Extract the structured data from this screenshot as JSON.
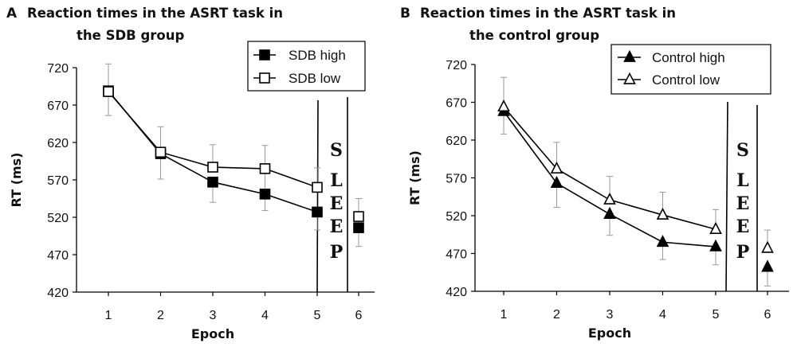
{
  "chart_data": [
    {
      "type": "line",
      "panel_label": "A",
      "title_lines": [
        "Reaction times in the ASRT task in",
        "the SDB group"
      ],
      "xlabel": "Epoch",
      "ylabel": "RT (ms)",
      "ylim": [
        420,
        720
      ],
      "yticks": [
        420,
        470,
        520,
        570,
        620,
        670,
        720
      ],
      "categories": [
        "1",
        "2",
        "3",
        "4",
        "5",
        "6"
      ],
      "annotation": [
        "S",
        "L",
        "E",
        "E",
        "P"
      ],
      "legend_position": "top-right",
      "series": [
        {
          "name": "SDB high",
          "marker": "square-filled",
          "values": [
            689,
            605,
            567,
            551,
            527,
            506
          ],
          "error_high": [
            725,
            641,
            null,
            616,
            null,
            null
          ],
          "error_low": [
            656,
            571,
            540,
            529,
            503,
            481
          ]
        },
        {
          "name": "SDB low",
          "marker": "square-open",
          "values": [
            688,
            607,
            587,
            585,
            560,
            521
          ],
          "error_high": [
            null,
            null,
            617,
            null,
            586,
            545
          ],
          "error_low": [
            null,
            null,
            null,
            null,
            null,
            null
          ]
        }
      ]
    },
    {
      "type": "line",
      "panel_label": "B",
      "title_lines": [
        "Reaction times in the ASRT task in",
        "the control group"
      ],
      "xlabel": "Epoch",
      "ylabel": "RT (ms)",
      "ylim": [
        420,
        720
      ],
      "yticks": [
        420,
        470,
        520,
        570,
        620,
        670,
        720
      ],
      "categories": [
        "1",
        "2",
        "3",
        "4",
        "5",
        "6"
      ],
      "annotation": [
        "S",
        "L",
        "E",
        "E",
        "P"
      ],
      "legend_position": "top-right",
      "series": [
        {
          "name": "Control high",
          "marker": "triangle-filled",
          "values": [
            658,
            563,
            522,
            485,
            479,
            452
          ],
          "error_high": [
            null,
            null,
            null,
            null,
            null,
            null
          ],
          "error_low": [
            628,
            531,
            494,
            462,
            455,
            427
          ]
        },
        {
          "name": "Control low",
          "marker": "triangle-open",
          "values": [
            664,
            582,
            541,
            521,
            502,
            477
          ],
          "error_high": [
            703,
            617,
            572,
            551,
            528,
            501
          ],
          "error_low": [
            null,
            null,
            null,
            null,
            null,
            null
          ]
        }
      ]
    }
  ]
}
